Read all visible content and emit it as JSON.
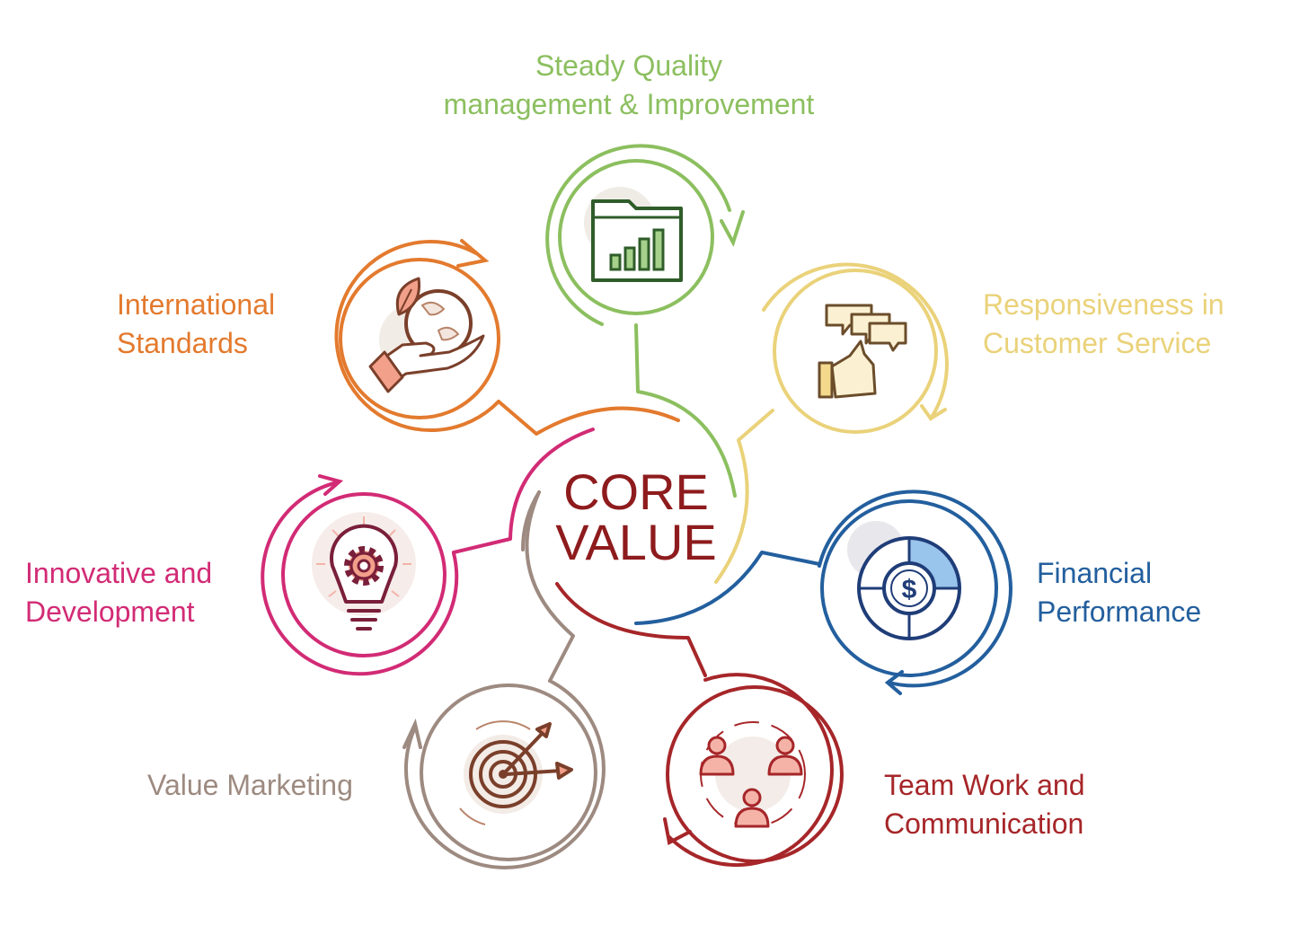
{
  "center": {
    "line1": "CORE",
    "line2": "VALUE",
    "color": "#8e1b1d"
  },
  "nodes": [
    {
      "id": "quality",
      "lines": [
        "Steady Quality",
        "management & Improvement"
      ],
      "color": "#8cbf5f",
      "icon": "bar-chart-folder-icon"
    },
    {
      "id": "customer",
      "lines": [
        "Responsiveness in",
        "Customer Service"
      ],
      "color": "#ead27a",
      "icon": "hand-speech-bubbles-icon"
    },
    {
      "id": "financial",
      "lines": [
        "Financial",
        "Performance"
      ],
      "color": "#235f9e",
      "icon": "dollar-donut-chart-icon"
    },
    {
      "id": "teamwork",
      "lines": [
        "Team Work and",
        "Communication"
      ],
      "color": "#a62629",
      "icon": "team-people-icon"
    },
    {
      "id": "marketing",
      "lines": [
        "Value Marketing"
      ],
      "color": "#9d8a80",
      "icon": "target-arrows-icon"
    },
    {
      "id": "innovative",
      "lines": [
        "Innovative and",
        "Development"
      ],
      "color": "#d22b75",
      "icon": "gear-bulb-icon"
    },
    {
      "id": "international",
      "lines": [
        "International",
        "Standards"
      ],
      "color": "#e37a2e",
      "icon": "hand-globe-leaf-icon"
    }
  ]
}
